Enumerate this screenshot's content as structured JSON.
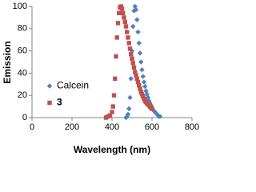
{
  "chart_data": {
    "type": "scatter",
    "xlabel": "Wavelength (nm)",
    "ylabel": "Emission",
    "xlim": [
      0,
      800
    ],
    "xticks": [
      0,
      200,
      400,
      600,
      800
    ],
    "ylim": [
      0,
      100
    ],
    "yticks": [
      0,
      20,
      40,
      60,
      80,
      100
    ],
    "legend": "center-left",
    "series": [
      {
        "name": "Calcein",
        "color": "#4f81bd",
        "marker": "diamond",
        "x": [
          470,
          475,
          480,
          485,
          490,
          495,
          500,
          505,
          510,
          515,
          520,
          525,
          530,
          535,
          540,
          545,
          550,
          555,
          560,
          565,
          570,
          575,
          580,
          585,
          590,
          595,
          600,
          605,
          610,
          615,
          620,
          625,
          630,
          635,
          640
        ],
        "values": [
          0,
          1,
          3,
          8,
          18,
          35,
          60,
          82,
          96,
          100,
          97,
          88,
          77,
          67,
          58,
          50,
          43,
          37,
          32,
          28,
          24,
          21,
          18,
          15,
          13,
          11,
          9,
          7,
          6,
          5,
          4,
          3,
          2,
          1,
          1
        ]
      },
      {
        "name": "3",
        "color": "#c0504d",
        "marker": "square",
        "x": [
          370,
          380,
          390,
          400,
          405,
          410,
          415,
          420,
          425,
          430,
          435,
          440,
          445,
          450,
          455,
          460,
          465,
          470,
          475,
          480,
          485,
          490,
          495,
          500,
          505,
          510,
          515,
          520,
          525,
          530,
          535,
          540,
          545,
          550,
          555,
          560,
          565,
          570,
          575,
          580,
          585,
          590,
          595,
          600
        ],
        "values": [
          0,
          1,
          2,
          5,
          10,
          20,
          35,
          55,
          72,
          85,
          94,
          99,
          100,
          98,
          94,
          90,
          86,
          82,
          77,
          72,
          67,
          62,
          57,
          53,
          49,
          45,
          41,
          38,
          35,
          32,
          29,
          26,
          23,
          21,
          19,
          17,
          15,
          14,
          13,
          12,
          11,
          10,
          9,
          8
        ]
      }
    ]
  }
}
